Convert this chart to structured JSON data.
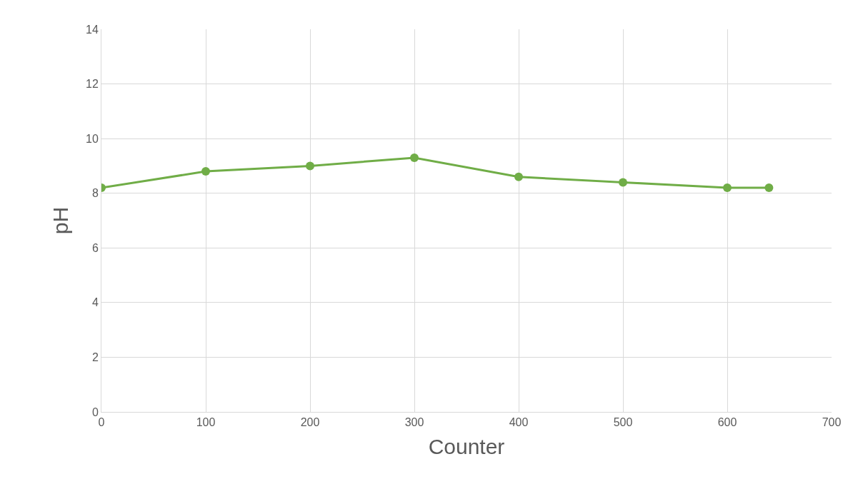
{
  "chart_data": {
    "type": "line",
    "xlabel": "Counter",
    "ylabel": "pH",
    "x": [
      0,
      100,
      200,
      300,
      400,
      500,
      600,
      640
    ],
    "series": [
      {
        "color": "#70ad47",
        "values": [
          8.2,
          8.8,
          9.0,
          9.3,
          8.6,
          8.4,
          8.2,
          8.2
        ]
      }
    ],
    "xlim": [
      0,
      700
    ],
    "xticks": [
      0,
      100,
      200,
      300,
      400,
      500,
      600,
      700
    ],
    "ylim": [
      0,
      14
    ],
    "yticks": [
      0,
      2,
      4,
      6,
      8,
      10,
      12,
      14
    ],
    "grid": true,
    "legend": false,
    "marker": "circle",
    "line_style": "solid"
  }
}
